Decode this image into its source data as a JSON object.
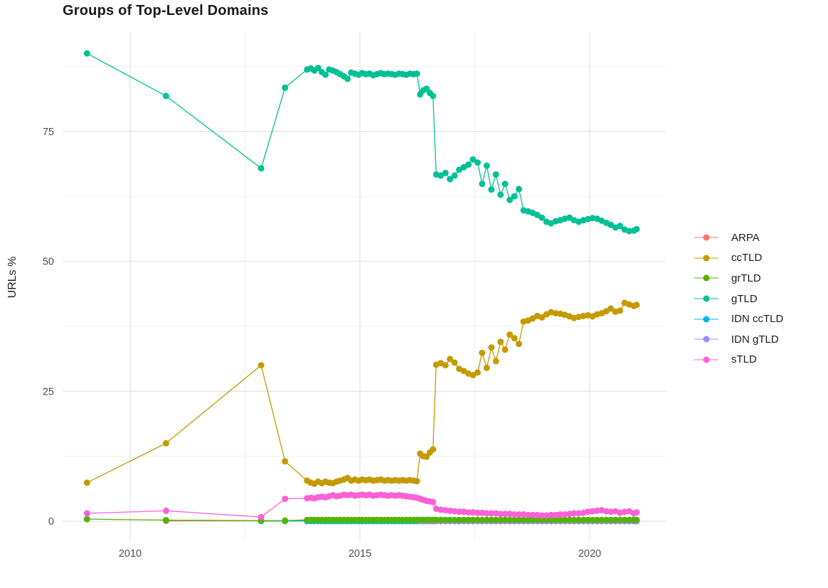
{
  "chart_data": {
    "type": "line",
    "title": "Groups of Top-Level Domains",
    "xlabel": "",
    "ylabel": "URLs %",
    "xlim": [
      2008.5,
      2021.7
    ],
    "ylim": [
      -1,
      93
    ],
    "grid": "on",
    "legend_position": "right",
    "x_axis": {
      "ticks": [
        2010,
        2015,
        2020
      ],
      "minor": [
        2012.5,
        2017.5
      ]
    },
    "y_axis": {
      "ticks": [
        0,
        25,
        50,
        75
      ],
      "minor": [
        12.5,
        37.5,
        62.5,
        87.5
      ]
    },
    "x": [
      2009.06,
      2010.78,
      2012.85,
      2013.37,
      2013.85,
      2013.93,
      2014.01,
      2014.09,
      2014.17,
      2014.25,
      2014.33,
      2014.41,
      2014.49,
      2014.57,
      2014.65,
      2014.73,
      2014.81,
      2014.89,
      2014.97,
      2015.05,
      2015.13,
      2015.21,
      2015.29,
      2015.37,
      2015.45,
      2015.53,
      2015.61,
      2015.69,
      2015.77,
      2015.85,
      2015.93,
      2016.01,
      2016.09,
      2016.17,
      2016.24,
      2016.31,
      2016.38,
      2016.45,
      2016.52,
      2016.59,
      2016.66,
      2016.76,
      2016.86,
      2016.96,
      2017.06,
      2017.16,
      2017.26,
      2017.36,
      2017.46,
      2017.56,
      2017.66,
      2017.76,
      2017.86,
      2017.96,
      2018.06,
      2018.16,
      2018.26,
      2018.36,
      2018.46,
      2018.56,
      2018.66,
      2018.76,
      2018.86,
      2018.96,
      2019.06,
      2019.16,
      2019.26,
      2019.36,
      2019.46,
      2019.56,
      2019.66,
      2019.76,
      2019.86,
      2019.96,
      2020.06,
      2020.16,
      2020.26,
      2020.36,
      2020.46,
      2020.56,
      2020.66,
      2020.76,
      2020.86,
      2020.96,
      2021.02
    ],
    "series": [
      {
        "name": "ARPA",
        "color": "#F8766D",
        "values": [
          null,
          0.05,
          0.05,
          0.05,
          0.05,
          0.05,
          0.05,
          0.05,
          0.05,
          0.05,
          0.05,
          0.05,
          0.05,
          0.05,
          0.05,
          0.05,
          0.05,
          0.05,
          0.05,
          0.05,
          0.05,
          0.05,
          0.05,
          0.05,
          0.05,
          0.05,
          0.05,
          0.05,
          0.05,
          0.05,
          0.05,
          0.05,
          0.05,
          0.05,
          0.05,
          0.05,
          0.05,
          0.05,
          0.05,
          0.05,
          0.05,
          0.05,
          0.05,
          0.05,
          0.05,
          0.05,
          0.05,
          0.05,
          0.05,
          0.05,
          0.05,
          0.05,
          0.05,
          0.05,
          0.05,
          0.05,
          0.05,
          0.05,
          0.05,
          0.05,
          0.05,
          0.05,
          0.05,
          0.05,
          0.05,
          0.05,
          0.05,
          0.05,
          0.05,
          0.05,
          0.05,
          0.05,
          0.05,
          0.05,
          0.05,
          0.05,
          0.05,
          0.05,
          0.05,
          0.05,
          0.05,
          0.05,
          0.05,
          0.05,
          0.05
        ]
      },
      {
        "name": "ccTLD",
        "color": "#C49A00",
        "values": [
          7.4,
          15.0,
          30.0,
          11.5,
          7.8,
          7.4,
          7.2,
          7.6,
          7.3,
          7.6,
          7.4,
          7.3,
          7.6,
          7.8,
          8.0,
          8.3,
          7.8,
          8.0,
          7.8,
          8.0,
          7.9,
          8.0,
          7.8,
          7.9,
          8.0,
          7.8,
          7.9,
          7.8,
          7.9,
          7.8,
          7.9,
          7.8,
          7.9,
          7.8,
          7.7,
          13.0,
          12.5,
          12.4,
          13.2,
          13.8,
          30.1,
          30.4,
          30.0,
          31.2,
          30.5,
          29.3,
          28.9,
          28.4,
          28.1,
          28.6,
          32.4,
          29.5,
          33.4,
          30.8,
          34.5,
          33.0,
          35.9,
          35.2,
          34.1,
          38.4,
          38.6,
          39.0,
          39.5,
          39.2,
          39.8,
          40.2,
          40.0,
          39.9,
          39.7,
          39.4,
          39.1,
          39.3,
          39.5,
          39.6,
          39.4,
          39.8,
          40.0,
          40.4,
          40.9,
          40.3,
          40.5,
          42.0,
          41.7,
          41.4,
          41.6
        ]
      },
      {
        "name": "grTLD",
        "color": "#53B400",
        "values": [
          0.4,
          0.2,
          0.1,
          0.1,
          0.25,
          0.25,
          0.25,
          0.25,
          0.25,
          0.25,
          0.25,
          0.25,
          0.25,
          0.25,
          0.25,
          0.25,
          0.25,
          0.25,
          0.25,
          0.25,
          0.25,
          0.25,
          0.25,
          0.25,
          0.25,
          0.25,
          0.25,
          0.25,
          0.25,
          0.25,
          0.25,
          0.25,
          0.25,
          0.25,
          0.25,
          0.25,
          0.25,
          0.25,
          0.25,
          0.25,
          0.25,
          0.25,
          0.25,
          0.25,
          0.25,
          0.25,
          0.25,
          0.25,
          0.25,
          0.25,
          0.25,
          0.25,
          0.25,
          0.25,
          0.25,
          0.25,
          0.25,
          0.25,
          0.25,
          0.25,
          0.25,
          0.25,
          0.25,
          0.25,
          0.25,
          0.25,
          0.25,
          0.25,
          0.25,
          0.25,
          0.25,
          0.25,
          0.25,
          0.25,
          0.25,
          0.25,
          0.25,
          0.25,
          0.25,
          0.25,
          0.25,
          0.25,
          0.25,
          0.25,
          0.25
        ]
      },
      {
        "name": "gTLD",
        "color": "#00C094",
        "values": [
          90.0,
          81.8,
          67.9,
          83.4,
          86.9,
          87.1,
          86.7,
          87.2,
          86.4,
          85.9,
          86.9,
          86.7,
          86.4,
          86.0,
          85.6,
          85.1,
          86.3,
          86.1,
          85.9,
          86.2,
          86.0,
          86.1,
          85.8,
          86.0,
          86.2,
          86.0,
          86.1,
          86.0,
          85.9,
          86.1,
          86.0,
          85.9,
          86.1,
          86.0,
          86.1,
          82.1,
          82.9,
          83.2,
          82.4,
          81.8,
          66.7,
          66.5,
          67.0,
          65.8,
          66.5,
          67.6,
          68.1,
          68.6,
          69.6,
          69.0,
          64.9,
          68.4,
          63.8,
          66.7,
          62.8,
          64.9,
          61.8,
          62.5,
          63.9,
          59.8,
          59.6,
          59.3,
          58.9,
          58.4,
          57.6,
          57.3,
          57.7,
          57.9,
          58.2,
          58.4,
          57.9,
          57.6,
          57.9,
          58.1,
          58.3,
          58.2,
          57.8,
          57.4,
          57.0,
          56.5,
          56.8,
          56.1,
          55.8,
          55.9,
          56.2
        ]
      },
      {
        "name": "IDN ccTLD",
        "color": "#00B6EB",
        "values": [
          null,
          null,
          0.02,
          0.02,
          0.02,
          0.02,
          0.02,
          0.02,
          0.02,
          0.02,
          0.02,
          0.02,
          0.02,
          0.02,
          0.02,
          0.02,
          0.02,
          0.02,
          0.02,
          0.02,
          0.02,
          0.02,
          0.02,
          0.02,
          0.02,
          0.02,
          0.02,
          0.02,
          0.02,
          0.02,
          0.02,
          0.02,
          0.02,
          0.02,
          0.02,
          0.02,
          0.02,
          0.02,
          0.02,
          0.02,
          0.02,
          0.02,
          0.02,
          0.02,
          0.02,
          0.02,
          0.02,
          0.02,
          0.02,
          0.02,
          0.02,
          0.02,
          0.02,
          0.02,
          0.02,
          0.02,
          0.02,
          0.02,
          0.02,
          0.02,
          0.02,
          0.02,
          0.02,
          0.02,
          0.02,
          0.02,
          0.02,
          0.02,
          0.02,
          0.02,
          0.02,
          0.02,
          0.02,
          0.02,
          0.02,
          0.02,
          0.02,
          0.02,
          0.02,
          0.02,
          0.02,
          0.02,
          0.02,
          0.02,
          0.02
        ]
      },
      {
        "name": "IDN gTLD",
        "color": "#A58AFF",
        "values": [
          null,
          null,
          null,
          null,
          null,
          null,
          null,
          null,
          null,
          null,
          null,
          null,
          null,
          null,
          null,
          null,
          null,
          null,
          null,
          null,
          null,
          null,
          null,
          null,
          null,
          null,
          null,
          null,
          null,
          null,
          null,
          null,
          null,
          null,
          null,
          0.0,
          0.0,
          0.0,
          0.0,
          0.0,
          0.0,
          0.0,
          0.0,
          0.0,
          0.0,
          0.0,
          0.0,
          0.0,
          0.0,
          0.0,
          0.0,
          0.0,
          0.0,
          0.0,
          0.0,
          0.0,
          0.0,
          0.0,
          0.0,
          0.0,
          0.0,
          0.0,
          0.0,
          0.0,
          0.0,
          0.0,
          0.0,
          0.0,
          0.0,
          0.0,
          0.0,
          0.0,
          0.0,
          0.0,
          0.0,
          0.0,
          0.0,
          0.0,
          0.0,
          0.0,
          0.0,
          0.0,
          0.0,
          0.0,
          0.0
        ]
      },
      {
        "name": "sTLD",
        "color": "#FB61D7",
        "values": [
          1.5,
          2.0,
          0.8,
          4.3,
          4.4,
          4.5,
          4.4,
          4.6,
          4.7,
          4.6,
          4.8,
          5.0,
          4.8,
          4.9,
          5.1,
          5.0,
          5.1,
          4.9,
          5.0,
          5.1,
          5.0,
          5.1,
          4.9,
          5.0,
          5.1,
          5.0,
          4.9,
          5.0,
          4.9,
          5.0,
          4.9,
          4.8,
          4.7,
          4.6,
          4.5,
          4.3,
          4.1,
          3.9,
          3.8,
          3.7,
          2.4,
          2.2,
          2.1,
          2.0,
          1.9,
          1.8,
          1.8,
          1.7,
          1.7,
          1.6,
          1.6,
          1.5,
          1.5,
          1.5,
          1.4,
          1.4,
          1.4,
          1.3,
          1.3,
          1.3,
          1.2,
          1.2,
          1.2,
          1.1,
          1.1,
          1.2,
          1.2,
          1.3,
          1.3,
          1.4,
          1.5,
          1.5,
          1.6,
          1.8,
          1.9,
          2.0,
          2.1,
          1.9,
          1.8,
          1.9,
          1.6,
          1.8,
          1.9,
          1.5,
          1.7
        ]
      }
    ]
  }
}
